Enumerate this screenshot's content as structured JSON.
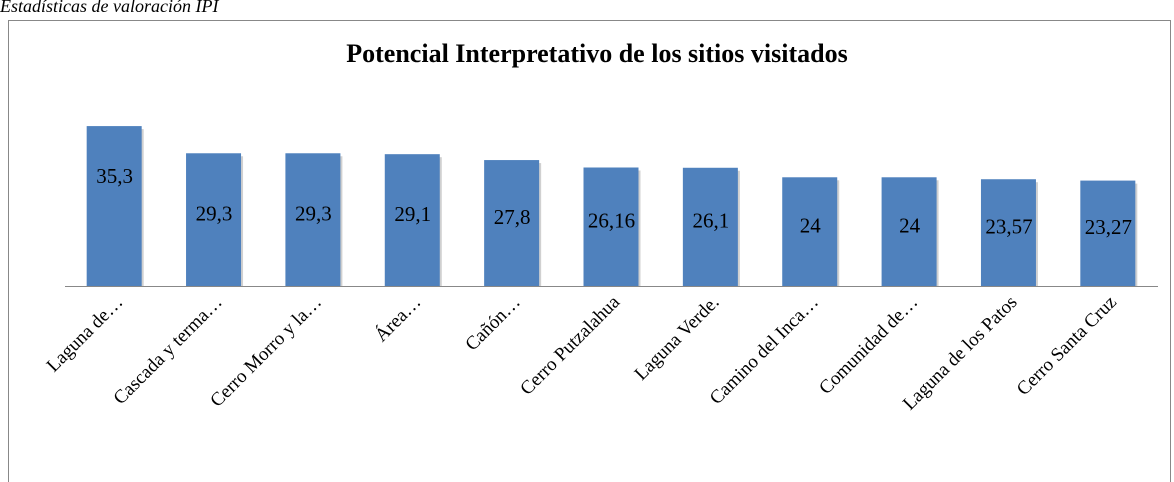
{
  "caption": "Estadísticas de valoración IPI",
  "chart_data": {
    "type": "bar",
    "title": "Potencial Interpretativo de los sitios visitados",
    "categories": [
      "Laguna de…",
      "Cascada y terma…",
      "Cerro Morro y  la…",
      "Área…",
      "Cañón…",
      "Cerro Putzalahua",
      "Laguna Verde.",
      "Camino del Inca…",
      "Comunidad de…",
      "Laguna de los Patos",
      "Cerro Santa Cruz"
    ],
    "values": [
      35.3,
      29.3,
      29.3,
      29.1,
      27.8,
      26.16,
      26.1,
      24,
      24,
      23.57,
      23.27
    ],
    "value_labels": [
      "35,3",
      "29,3",
      "29,3",
      "29,1",
      "27,8",
      "26,16",
      "26,1",
      "24",
      "24",
      "23,57",
      "23,27"
    ],
    "color": "#4f81bd"
  }
}
